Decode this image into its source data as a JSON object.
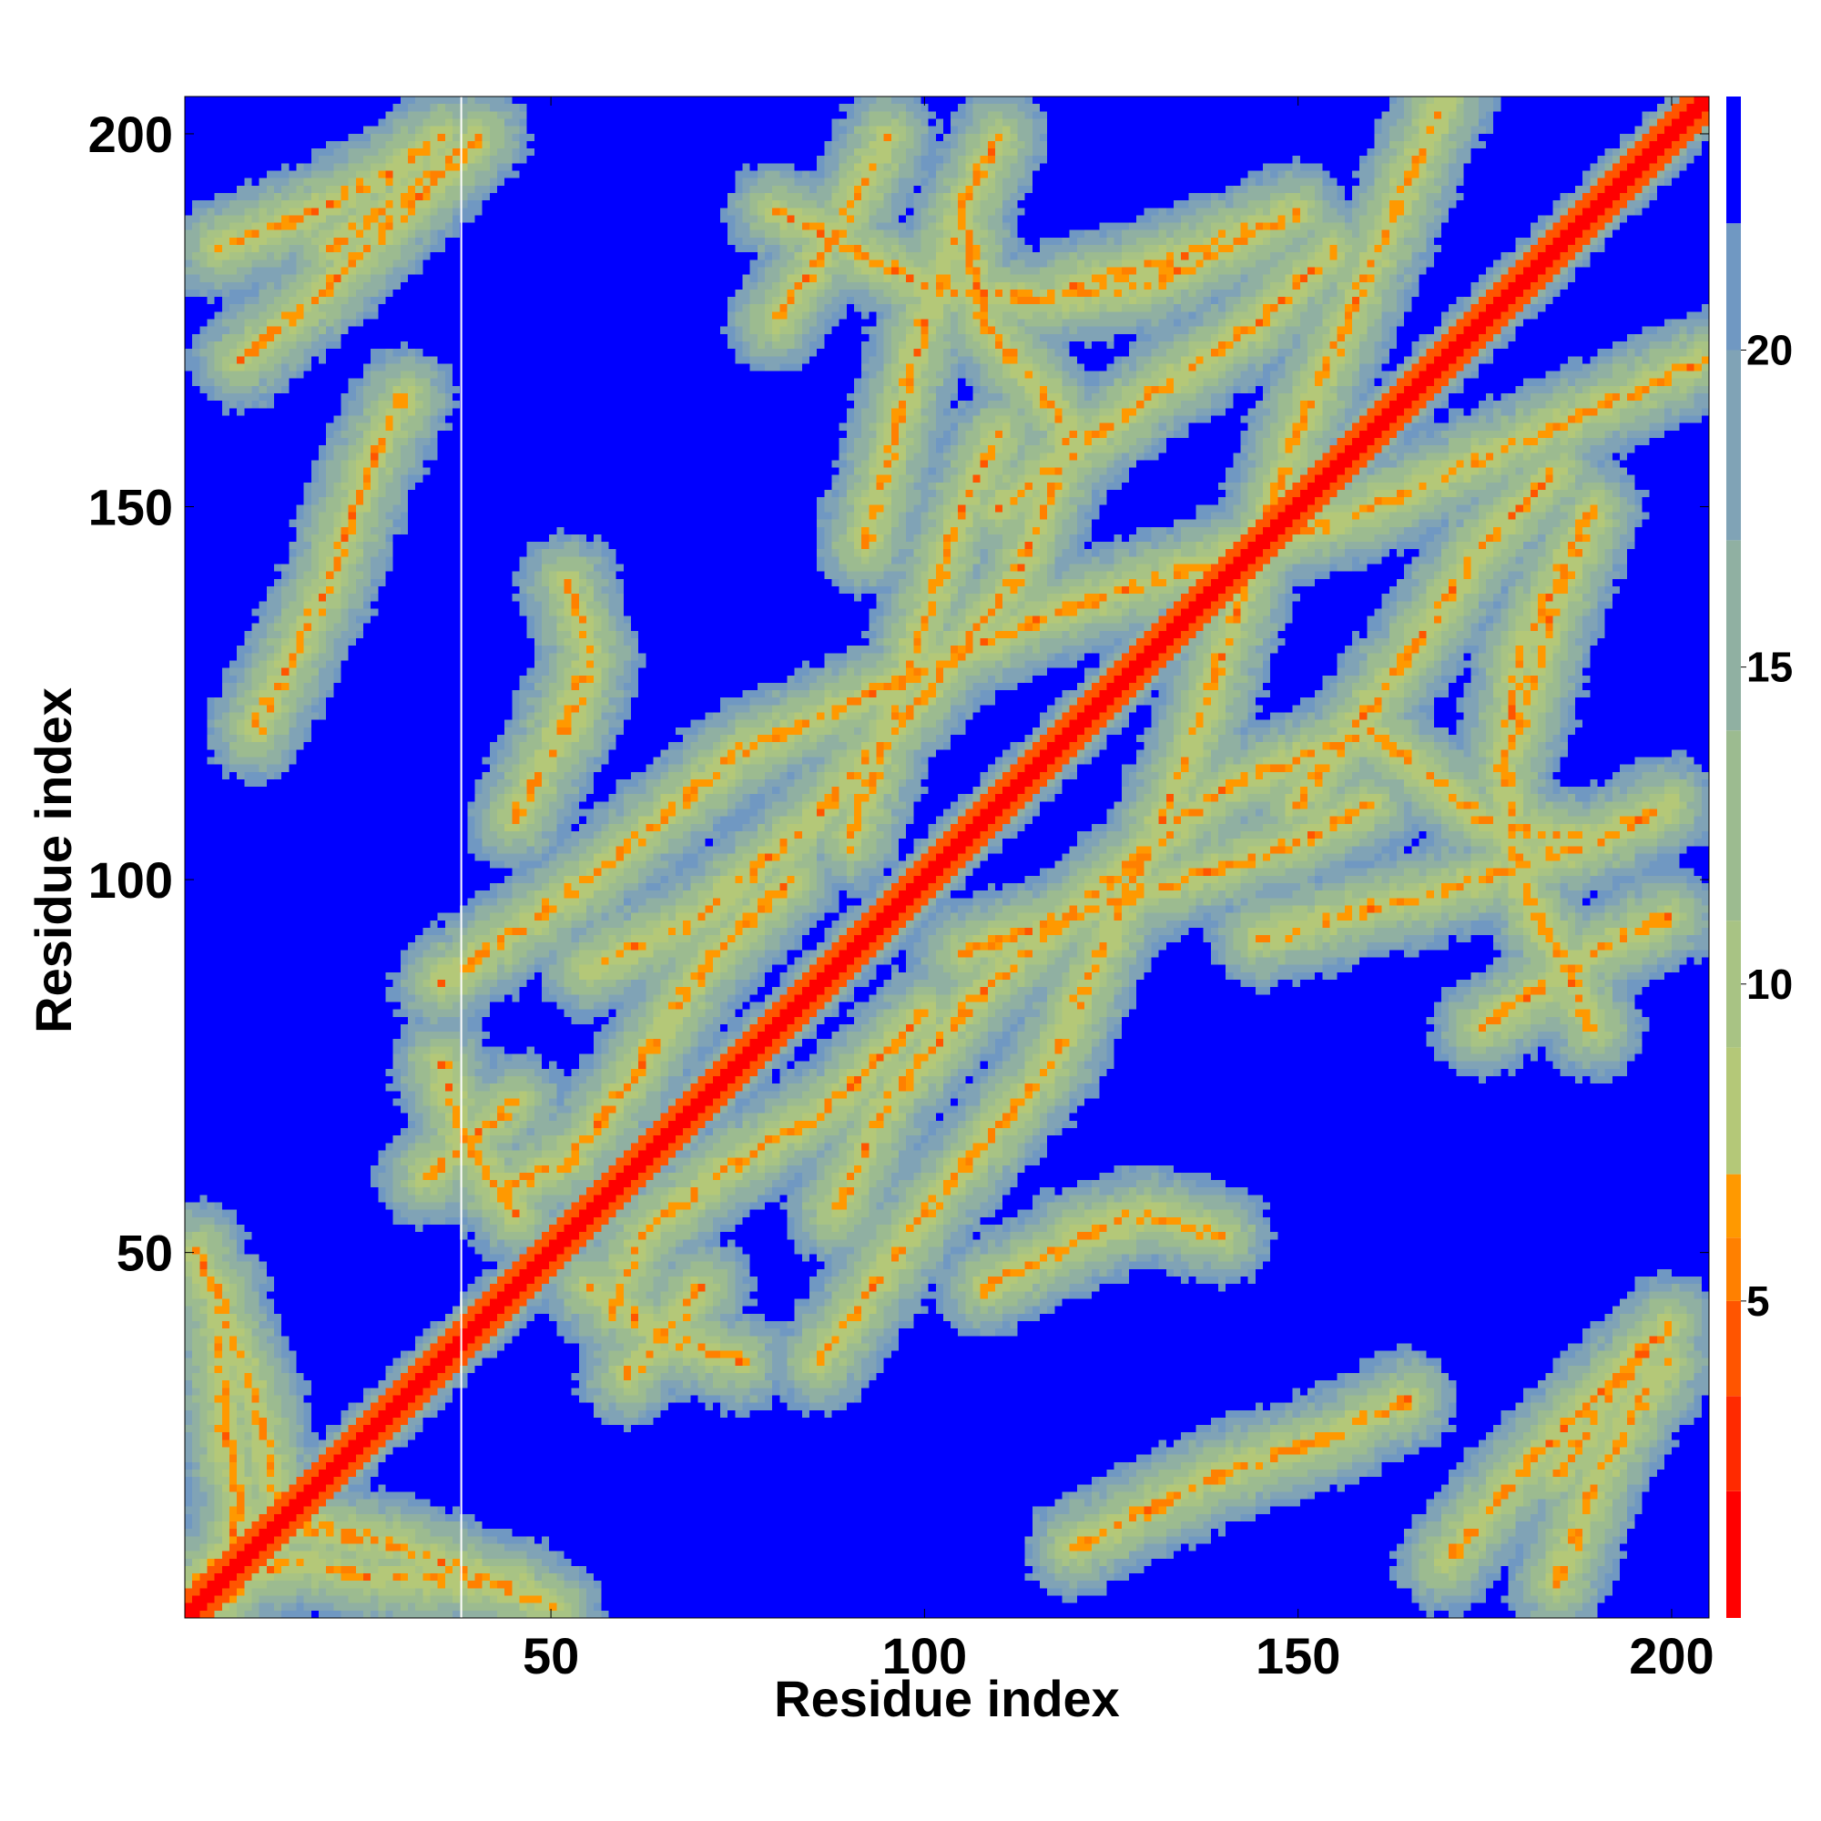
{
  "chart_data": {
    "type": "heatmap",
    "title": "",
    "xlabel": "Residue index",
    "ylabel": "Residue index",
    "xlim": [
      1,
      205
    ],
    "ylim": [
      1,
      205
    ],
    "x_ticks": [
      50,
      100,
      150,
      200
    ],
    "y_ticks": [
      50,
      100,
      150,
      200
    ],
    "colorbar": {
      "ticks": [
        5,
        10,
        15,
        20
      ],
      "range": [
        0,
        24
      ],
      "bands": [
        {
          "from": 0,
          "to": 2,
          "color": "#ff0000"
        },
        {
          "from": 2,
          "to": 3.5,
          "color": "#ff2a00"
        },
        {
          "from": 3.5,
          "to": 5,
          "color": "#ff5500"
        },
        {
          "from": 5,
          "to": 6,
          "color": "#ff8000"
        },
        {
          "from": 6,
          "to": 7,
          "color": "#ff9900"
        },
        {
          "from": 7,
          "to": 9,
          "color": "#b4c878"
        },
        {
          "from": 9,
          "to": 11,
          "color": "#a8c384"
        },
        {
          "from": 11,
          "to": 14,
          "color": "#9cbb90"
        },
        {
          "from": 14,
          "to": 17,
          "color": "#90b0a2"
        },
        {
          "from": 17,
          "to": 20,
          "color": "#80a3b6"
        },
        {
          "from": 20,
          "to": 22,
          "color": "#7098c2"
        },
        {
          "from": 22,
          "to": 24,
          "color": "#0000ff"
        }
      ]
    },
    "background_color": "#0000ff",
    "vertical_gridline_x": 38,
    "contact_features": [
      {
        "type": "diagonal",
        "min": 1,
        "max": 205
      },
      {
        "type": "path",
        "points": [
          [
            2,
            50
          ],
          [
            10,
            30
          ],
          [
            13,
            15
          ],
          [
            2,
            5
          ]
        ]
      },
      {
        "type": "path",
        "points": [
          [
            5,
            45
          ],
          [
            6,
            25
          ],
          [
            8,
            16
          ],
          [
            6,
            8
          ]
        ]
      },
      {
        "type": "path",
        "points": [
          [
            35,
            86
          ],
          [
            55,
            100
          ],
          [
            75,
            117
          ],
          [
            115,
            135
          ],
          [
            160,
            150
          ],
          [
            205,
            170
          ]
        ]
      },
      {
        "type": "path",
        "points": [
          [
            190,
            80
          ],
          [
            185,
            90
          ],
          [
            180,
            100
          ],
          [
            178,
            115
          ],
          [
            180,
            130
          ],
          [
            185,
            140
          ],
          [
            190,
            150
          ]
        ]
      },
      {
        "type": "path",
        "points": [
          [
            180,
            120
          ],
          [
            184,
            135
          ],
          [
            188,
            145
          ]
        ]
      },
      {
        "type": "path",
        "points": [
          [
            42,
            58
          ],
          [
            52,
            62
          ],
          [
            60,
            72
          ],
          [
            70,
            88
          ],
          [
            82,
            100
          ]
        ]
      },
      {
        "type": "path",
        "points": [
          [
            55,
            45
          ],
          [
            65,
            38
          ],
          [
            75,
            35
          ]
        ]
      },
      {
        "type": "path",
        "points": [
          [
            33,
            60
          ],
          [
            45,
            70
          ]
        ]
      },
      {
        "type": "path",
        "points": [
          [
            55,
            88
          ],
          [
            70,
            95
          ],
          [
            85,
            108
          ],
          [
            100,
            125
          ],
          [
            112,
            140
          ],
          [
            120,
            160
          ],
          [
            108,
            175
          ],
          [
            105,
            190
          ],
          [
            110,
            200
          ]
        ]
      },
      {
        "type": "path",
        "points": [
          [
            170,
            8
          ],
          [
            180,
            20
          ],
          [
            190,
            30
          ],
          [
            200,
            40
          ]
        ]
      },
      {
        "type": "path",
        "points": [
          [
            185,
            5
          ],
          [
            190,
            18
          ],
          [
            195,
            28
          ],
          [
            200,
            35
          ]
        ]
      },
      {
        "type": "path",
        "points": [
          [
            10,
            120
          ],
          [
            20,
            140
          ],
          [
            25,
            155
          ],
          [
            30,
            165
          ]
        ]
      },
      {
        "type": "path",
        "points": [
          [
            110,
            150
          ],
          [
            130,
            165
          ],
          [
            145,
            175
          ],
          [
            155,
            185
          ]
        ]
      },
      {
        "type": "path",
        "points": [
          [
            80,
            175
          ],
          [
            90,
            190
          ],
          [
            95,
            200
          ]
        ]
      },
      {
        "type": "path",
        "points": [
          [
            105,
            90
          ],
          [
            120,
            95
          ],
          [
            135,
            100
          ],
          [
            150,
            105
          ],
          [
            160,
            110
          ]
        ]
      },
      {
        "type": "path",
        "points": [
          [
            145,
            92
          ],
          [
            160,
            96
          ],
          [
            175,
            100
          ],
          [
            190,
            105
          ],
          [
            200,
            110
          ]
        ]
      },
      {
        "type": "path",
        "points": [
          [
            120,
            52
          ],
          [
            130,
            55
          ],
          [
            140,
            52
          ]
        ]
      },
      {
        "type": "path",
        "points": [
          [
            20,
            185
          ],
          [
            30,
            192
          ],
          [
            40,
            200
          ]
        ]
      },
      {
        "type": "path",
        "points": [
          [
            108,
            45
          ],
          [
            118,
            50
          ],
          [
            130,
            55
          ]
        ]
      }
    ]
  }
}
